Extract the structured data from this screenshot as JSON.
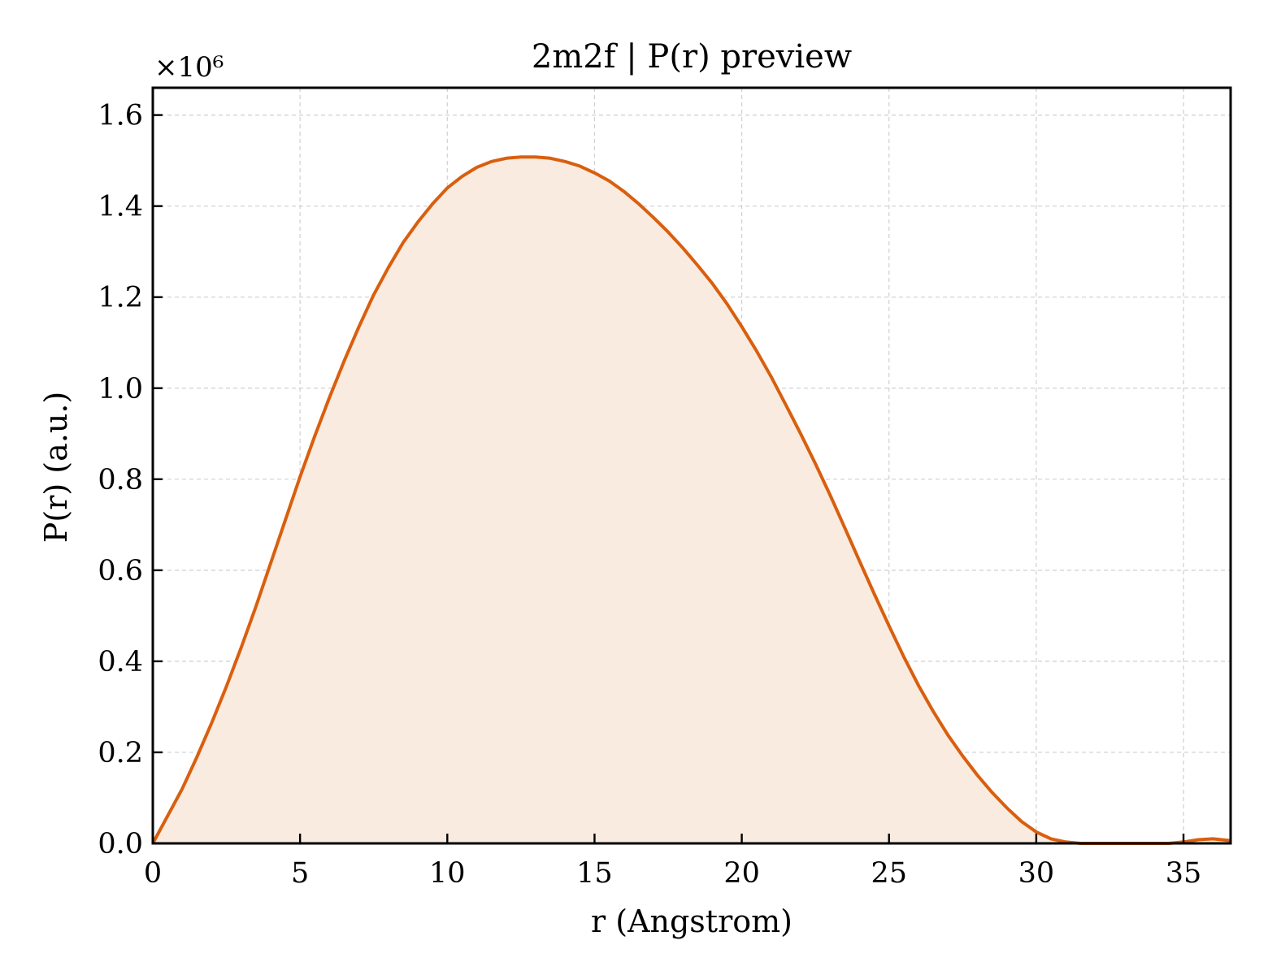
{
  "chart_data": {
    "type": "area",
    "title": "2m2f | P(r) preview",
    "xlabel": "r (Angstrom)",
    "ylabel": "P(r) (a.u.)",
    "y_multiplier_label": "×10⁶",
    "xlim": [
      0,
      36.6
    ],
    "ylim": [
      0,
      1.66
    ],
    "x_ticks": [
      0,
      5,
      10,
      15,
      20,
      25,
      30,
      35
    ],
    "x_tick_labels": [
      "0",
      "5",
      "10",
      "15",
      "20",
      "25",
      "30",
      "35"
    ],
    "y_ticks": [
      0,
      0.2,
      0.4,
      0.6,
      0.8,
      1.0,
      1.2,
      1.4,
      1.6
    ],
    "y_tick_labels": [
      "0.0",
      "0.2",
      "0.4",
      "0.6",
      "0.8",
      "1.0",
      "1.2",
      "1.4",
      "1.6"
    ],
    "grid": true,
    "line_color": "#d95f0e",
    "fill_color": "#f9ebe0",
    "series": [
      {
        "x": [
          0,
          0.5,
          1,
          1.5,
          2,
          2.5,
          3,
          3.5,
          4,
          4.5,
          5,
          5.5,
          6,
          6.5,
          7,
          7.5,
          8,
          8.5,
          9,
          9.5,
          10,
          10.5,
          11,
          11.5,
          12,
          12.5,
          13,
          13.5,
          14,
          14.5,
          15,
          15.5,
          16,
          16.5,
          17,
          17.5,
          18,
          18.5,
          19,
          19.5,
          20,
          20.5,
          21,
          21.5,
          22,
          22.5,
          23,
          23.5,
          24,
          24.5,
          25,
          25.5,
          26,
          26.5,
          27,
          27.5,
          28,
          28.5,
          29,
          29.5,
          30,
          30.5,
          31,
          31.5,
          32,
          32.5,
          33,
          33.5,
          34,
          34.5,
          35,
          35.5,
          36,
          36.6
        ],
        "y": [
          0.0,
          0.06,
          0.12,
          0.19,
          0.265,
          0.345,
          0.43,
          0.52,
          0.615,
          0.71,
          0.805,
          0.895,
          0.98,
          1.06,
          1.135,
          1.205,
          1.265,
          1.32,
          1.365,
          1.405,
          1.44,
          1.465,
          1.485,
          1.498,
          1.505,
          1.508,
          1.508,
          1.505,
          1.498,
          1.488,
          1.473,
          1.455,
          1.432,
          1.405,
          1.375,
          1.343,
          1.308,
          1.27,
          1.23,
          1.185,
          1.135,
          1.082,
          1.025,
          0.963,
          0.9,
          0.834,
          0.765,
          0.693,
          0.62,
          0.548,
          0.478,
          0.41,
          0.347,
          0.29,
          0.238,
          0.192,
          0.15,
          0.112,
          0.078,
          0.048,
          0.025,
          0.01,
          0.003,
          0.0,
          0.0,
          0.0,
          0.0,
          0.0,
          0.0,
          0.0,
          0.003,
          0.008,
          0.01,
          0.006
        ]
      }
    ]
  }
}
